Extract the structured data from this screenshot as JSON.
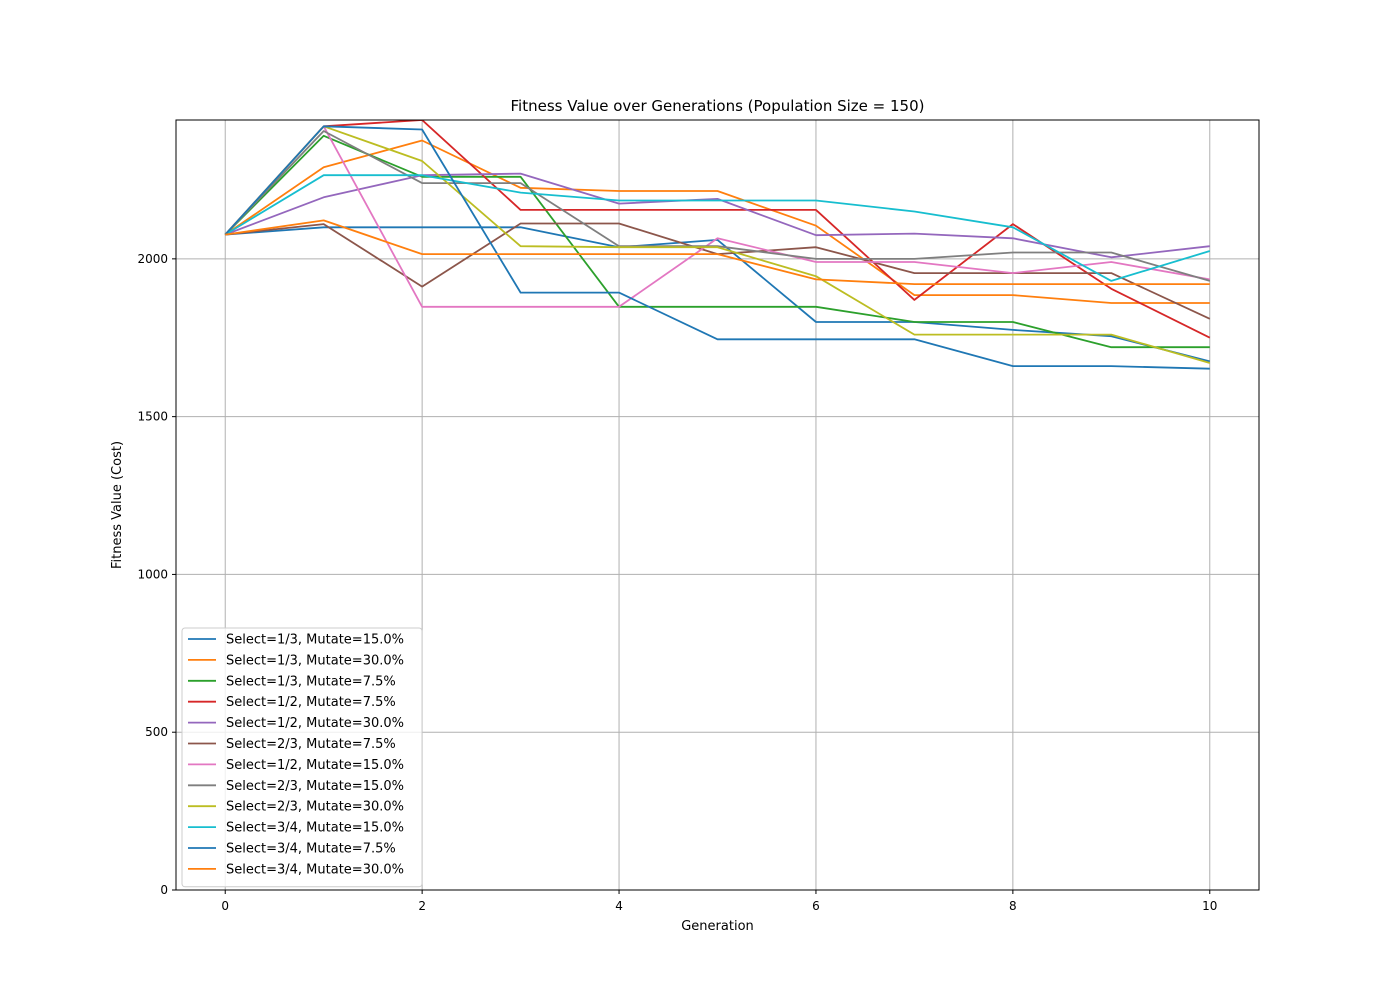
{
  "chart_data": {
    "type": "line",
    "title": "Fitness Value over Generations (Population Size = 150)",
    "xlabel": "Generation",
    "ylabel": "Fitness Value (Cost)",
    "xlim": [
      -0.5,
      10.5
    ],
    "ylim": [
      0,
      2440
    ],
    "xticks": [
      0,
      2,
      4,
      6,
      8,
      10
    ],
    "yticks": [
      0,
      500,
      1000,
      1500,
      2000
    ],
    "grid": true,
    "legend_position": "lower-left",
    "x": [
      0,
      1,
      2,
      3,
      4,
      5,
      6,
      7,
      8,
      9,
      10
    ],
    "series": [
      {
        "name": "Select=1/3, Mutate=15.0%",
        "color": "#1f77b4",
        "values": [
          2077,
          2100,
          2100,
          2100,
          2037,
          2060,
          1800,
          1800,
          1775,
          1755,
          1675
        ]
      },
      {
        "name": "Select=1/3, Mutate=30.0%",
        "color": "#ff7f0e",
        "values": [
          2077,
          2290,
          2375,
          2225,
          2215,
          2215,
          2105,
          1885,
          1885,
          1860,
          1860
        ]
      },
      {
        "name": "Select=1/3, Mutate=7.5%",
        "color": "#2ca02c",
        "values": [
          2077,
          2390,
          2260,
          2260,
          1848,
          1848,
          1848,
          1800,
          1800,
          1720,
          1720
        ]
      },
      {
        "name": "Select=1/2, Mutate=7.5%",
        "color": "#d62728",
        "values": [
          2077,
          2420,
          2440,
          2155,
          2155,
          2155,
          2155,
          1870,
          2110,
          1905,
          1750
        ]
      },
      {
        "name": "Select=1/2, Mutate=30.0%",
        "color": "#9467bd",
        "values": [
          2077,
          2195,
          2265,
          2270,
          2175,
          2190,
          2075,
          2080,
          2065,
          2005,
          2040
        ]
      },
      {
        "name": "Select=2/3, Mutate=7.5%",
        "color": "#8c564b",
        "values": [
          2077,
          2110,
          1912,
          2112,
          2112,
          2015,
          2037,
          1955,
          1955,
          1955,
          1810
        ]
      },
      {
        "name": "Select=1/2, Mutate=15.0%",
        "color": "#e377c2",
        "values": [
          2077,
          2420,
          1848,
          1848,
          1848,
          2065,
          1990,
          1990,
          1955,
          1990,
          1935
        ]
      },
      {
        "name": "Select=2/3, Mutate=15.0%",
        "color": "#7f7f7f",
        "values": [
          2077,
          2405,
          2240,
          2240,
          2040,
          2040,
          2000,
          2000,
          2020,
          2020,
          1930
        ]
      },
      {
        "name": "Select=2/3, Mutate=30.0%",
        "color": "#bcbd22",
        "values": [
          2077,
          2420,
          2310,
          2040,
          2037,
          2037,
          1945,
          1760,
          1760,
          1760,
          1670
        ]
      },
      {
        "name": "Select=3/4, Mutate=15.0%",
        "color": "#17becf",
        "values": [
          2077,
          2265,
          2265,
          2210,
          2185,
          2185,
          2185,
          2150,
          2100,
          1930,
          2025
        ]
      },
      {
        "name": "Select=3/4, Mutate=7.5%",
        "color": "#1f77b4",
        "values": [
          2077,
          2420,
          2410,
          1893,
          1893,
          1745,
          1745,
          1745,
          1660,
          1660,
          1652
        ]
      },
      {
        "name": "Select=3/4, Mutate=30.0%",
        "color": "#ff7f0e",
        "values": [
          2077,
          2122,
          2015,
          2015,
          2015,
          2015,
          1935,
          1920,
          1920,
          1920,
          1920
        ]
      }
    ]
  }
}
